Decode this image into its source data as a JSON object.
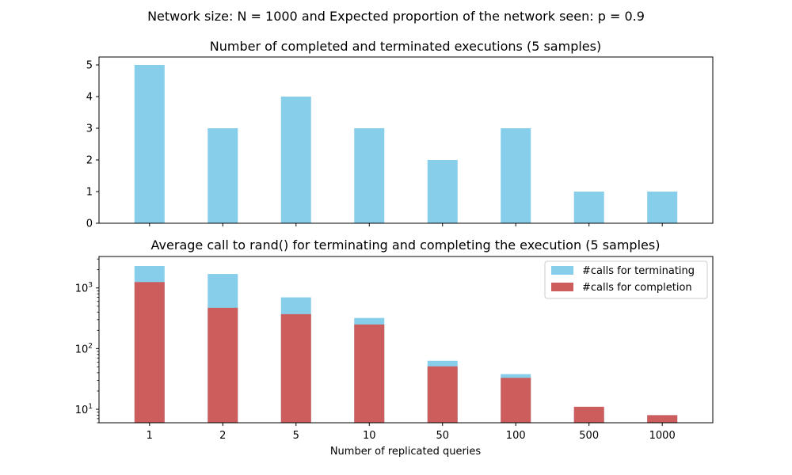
{
  "figure": {
    "suptitle": "Network size: N = 1000 and Expected proportion of the network seen: p = 0.9"
  },
  "colors": {
    "terminating": "#87ceeb",
    "completion": "#cd5c5c"
  },
  "chart_data": [
    {
      "type": "bar",
      "title": "Number of completed and terminated executions (5 samples)",
      "xlabel": "",
      "ylabel": "",
      "categories": [
        "1",
        "2",
        "5",
        "10",
        "50",
        "100",
        "500",
        "1000"
      ],
      "values": [
        5,
        3,
        4,
        3,
        2,
        3,
        1,
        1
      ],
      "ylim": [
        0,
        5.25
      ],
      "yticks": [
        0,
        1,
        2,
        3,
        4,
        5
      ],
      "xtick_labels_visible": false,
      "grid": false
    },
    {
      "type": "bar",
      "title": "Average call to rand() for terminating and completing the execution (5 samples)",
      "xlabel": "Number of replicated queries",
      "ylabel": "",
      "yscale": "log",
      "categories": [
        "1",
        "2",
        "5",
        "10",
        "50",
        "100",
        "500",
        "1000"
      ],
      "ylim": [
        6,
        3300
      ],
      "yticks": [
        {
          "value": 10,
          "base": "10",
          "exp": "1"
        },
        {
          "value": 100,
          "base": "10",
          "exp": "2"
        },
        {
          "value": 1000,
          "base": "10",
          "exp": "3"
        }
      ],
      "legend_position": "top-right",
      "grid": false,
      "series": [
        {
          "name": "#calls for terminating",
          "values": [
            2300,
            1700,
            700,
            320,
            63,
            38,
            10,
            8
          ]
        },
        {
          "name": "#calls for completion",
          "values": [
            1250,
            470,
            370,
            250,
            51,
            33,
            11,
            8
          ]
        }
      ]
    }
  ]
}
